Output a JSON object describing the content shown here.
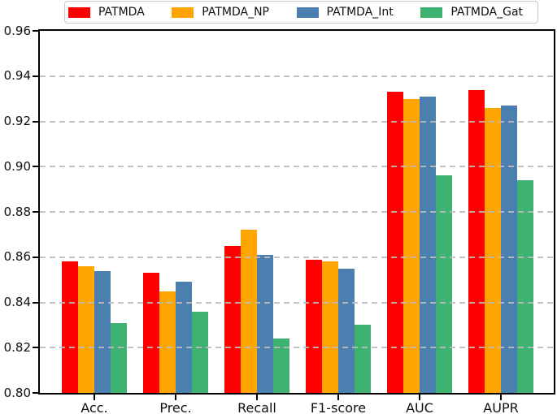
{
  "chart_data": {
    "type": "bar",
    "title": "",
    "xlabel": "",
    "ylabel": "",
    "categories": [
      "Acc.",
      "Prec.",
      "Recall",
      "F1-score",
      "AUC",
      "AUPR"
    ],
    "series": [
      {
        "name": "PATMDA",
        "color": "#ff0000",
        "values": [
          0.858,
          0.853,
          0.865,
          0.859,
          0.933,
          0.934
        ]
      },
      {
        "name": "PATMDA_NP",
        "color": "#ffa502",
        "values": [
          0.856,
          0.845,
          0.872,
          0.858,
          0.93,
          0.926
        ]
      },
      {
        "name": "PATMDA_Int",
        "color": "#4a7fb0",
        "values": [
          0.854,
          0.849,
          0.861,
          0.855,
          0.931,
          0.927
        ]
      },
      {
        "name": "PATMDA_Gat",
        "color": "#3db271",
        "values": [
          0.831,
          0.836,
          0.824,
          0.83,
          0.896,
          0.894
        ]
      }
    ],
    "ylim": [
      0.8,
      0.96
    ],
    "ytick_labels": [
      "0.80",
      "0.82",
      "0.84",
      "0.86",
      "0.88",
      "0.90",
      "0.92",
      "0.94",
      "0.96"
    ],
    "grid": "horizontal dashed, drawn above bars",
    "legend_position": "top, outside axes, 4 columns",
    "colors": {
      "grid": "#bbbbbb",
      "axis": "#000000",
      "legend_border": "#c9c9c9",
      "background": "#ffffff"
    }
  },
  "legend": {
    "items": [
      {
        "label": "PATMDA",
        "color": "#ff0000"
      },
      {
        "label": "PATMDA_NP",
        "color": "#ffa502"
      },
      {
        "label": "PATMDA_Int",
        "color": "#4a7fb0"
      },
      {
        "label": "PATMDA_Gat",
        "color": "#3db271"
      }
    ]
  }
}
